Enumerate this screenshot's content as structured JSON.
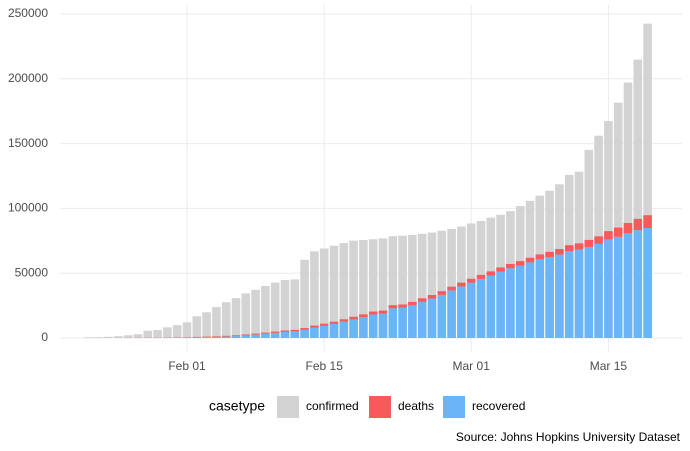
{
  "chart_data": {
    "type": "bar",
    "categories": [
      "Jan 22",
      "Jan 23",
      "Jan 24",
      "Jan 25",
      "Jan 26",
      "Jan 27",
      "Jan 28",
      "Jan 29",
      "Jan 30",
      "Jan 31",
      "Feb 01",
      "Feb 02",
      "Feb 03",
      "Feb 04",
      "Feb 05",
      "Feb 06",
      "Feb 07",
      "Feb 08",
      "Feb 09",
      "Feb 10",
      "Feb 11",
      "Feb 12",
      "Feb 13",
      "Feb 14",
      "Feb 15",
      "Feb 16",
      "Feb 17",
      "Feb 18",
      "Feb 19",
      "Feb 20",
      "Feb 21",
      "Feb 22",
      "Feb 23",
      "Feb 24",
      "Feb 25",
      "Feb 26",
      "Feb 27",
      "Feb 28",
      "Feb 29",
      "Mar 01",
      "Mar 02",
      "Mar 03",
      "Mar 04",
      "Mar 05",
      "Mar 06",
      "Mar 07",
      "Mar 08",
      "Mar 09",
      "Mar 10",
      "Mar 11",
      "Mar 12",
      "Mar 13",
      "Mar 14",
      "Mar 15",
      "Mar 16",
      "Mar 17",
      "Mar 18",
      "Mar 19"
    ],
    "series": [
      {
        "name": "confirmed",
        "color": "#d3d3d3",
        "values": [
          555,
          654,
          941,
          1434,
          2118,
          2927,
          5578,
          6166,
          8234,
          9927,
          12038,
          16787,
          19881,
          23892,
          27635,
          30794,
          34391,
          37120,
          40150,
          42762,
          44802,
          45221,
          60368,
          66885,
          69030,
          71224,
          73258,
          75136,
          75639,
          76197,
          76819,
          78572,
          78958,
          79561,
          80406,
          81388,
          82746,
          84112,
          86011,
          88369,
          90306,
          92840,
          95120,
          97886,
          101801,
          105847,
          109821,
          113590,
          118620,
          125875,
          128352,
          145205,
          156101,
          167454,
          181574,
          197102,
          214821,
          242570
        ]
      },
      {
        "name": "deaths",
        "color": "#f8595a",
        "values": [
          17,
          18,
          26,
          42,
          56,
          82,
          131,
          133,
          171,
          213,
          259,
          362,
          426,
          492,
          564,
          634,
          719,
          806,
          906,
          1013,
          1113,
          1118,
          1371,
          1523,
          1666,
          1770,
          1868,
          2007,
          2122,
          2247,
          2251,
          2458,
          2469,
          2629,
          2708,
          2770,
          2814,
          2872,
          2941,
          2996,
          3085,
          3160,
          3254,
          3348,
          3460,
          3558,
          3802,
          3988,
          4262,
          4615,
          4720,
          5404,
          5819,
          6440,
          7126,
          7905,
          8733,
          9867
        ]
      },
      {
        "name": "recovered",
        "color": "#6ab4f8",
        "values": [
          28,
          30,
          36,
          39,
          52,
          61,
          107,
          126,
          143,
          222,
          284,
          472,
          623,
          852,
          1124,
          1487,
          2011,
          2616,
          3244,
          3946,
          4683,
          5150,
          6295,
          8058,
          9395,
          10865,
          12583,
          14352,
          16121,
          18177,
          18890,
          22886,
          23394,
          25227,
          27905,
          30384,
          33277,
          36711,
          39782,
          42716,
          45602,
          48228,
          51170,
          53796,
          55865,
          58358,
          60694,
          62494,
          64404,
          67003,
          68324,
          70251,
          72624,
          76034,
          78088,
          80840,
          83207,
          84854
        ]
      }
    ],
    "ylim": [
      0,
      250000
    ],
    "yticks": [
      0,
      50000,
      100000,
      150000,
      200000,
      250000
    ],
    "xticks": [
      "Feb 01",
      "Feb 15",
      "Mar 01",
      "Mar 15"
    ],
    "grid": true,
    "legend_title": "casetype",
    "legend": "bottom",
    "caption": "Source: Johns Hopkins University Dataset"
  }
}
